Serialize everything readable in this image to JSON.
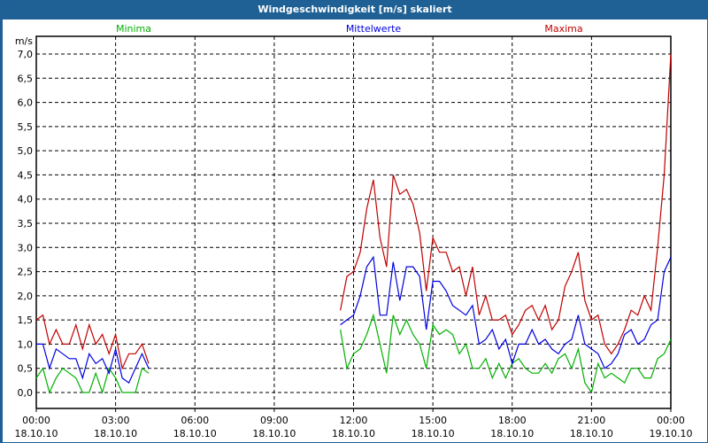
{
  "window": {
    "title": "Windgeschwindigkeit [m/s] skaliert"
  },
  "chart_data": {
    "type": "line",
    "title": "Windgeschwindigkeit [m/s] skaliert",
    "ylabel": "m/s",
    "xlabel": "",
    "ylim": [
      0,
      7
    ],
    "xlim_hours": [
      0,
      24
    ],
    "grid": true,
    "y_ticks": [
      "0,0",
      "0,5",
      "1,0",
      "1,5",
      "2,0",
      "2,5",
      "3,0",
      "3,5",
      "4,0",
      "4,5",
      "5,0",
      "5,5",
      "6,0",
      "6,5",
      "7,0"
    ],
    "x_ticks": [
      {
        "time": "00:00",
        "date": "18.10.10"
      },
      {
        "time": "03:00",
        "date": "18.10.10"
      },
      {
        "time": "06:00",
        "date": "18.10.10"
      },
      {
        "time": "09:00",
        "date": "18.10.10"
      },
      {
        "time": "12:00",
        "date": "18.10.10"
      },
      {
        "time": "15:00",
        "date": "18.10.10"
      },
      {
        "time": "18:00",
        "date": "18.10.10"
      },
      {
        "time": "21:00",
        "date": "18.10.10"
      },
      {
        "time": "00:00",
        "date": "19.10.10"
      }
    ],
    "legend_position": "top",
    "series": [
      {
        "name": "Minima",
        "color": "#00b000",
        "segments": [
          {
            "start_hour": 0,
            "step_hours": 0.25,
            "values": [
              0.3,
              0.5,
              0.0,
              0.3,
              0.5,
              0.4,
              0.3,
              0.0,
              0.0,
              0.4,
              0.0,
              0.5,
              0.3,
              0.0,
              0.0,
              0.0,
              0.5,
              0.4
            ]
          },
          {
            "start_hour": 11.5,
            "step_hours": 0.25,
            "values": [
              1.3,
              0.5,
              0.8,
              0.9,
              1.2,
              1.6,
              1.0,
              0.4,
              1.6,
              1.2,
              1.5,
              1.2,
              1.0,
              0.5,
              1.4,
              1.2,
              1.3,
              1.2,
              0.8,
              1.0,
              0.5,
              0.5,
              0.7,
              0.3,
              0.6,
              0.3,
              0.6,
              0.7,
              0.5,
              0.4,
              0.4,
              0.6,
              0.4,
              0.7,
              0.8,
              0.5,
              0.9,
              0.2,
              0.0,
              0.6,
              0.3,
              0.4,
              0.3,
              0.2,
              0.5,
              0.5,
              0.3,
              0.3,
              0.7,
              0.8,
              1.1
            ]
          }
        ]
      },
      {
        "name": "Mittelwerte",
        "color": "#0000e0",
        "segments": [
          {
            "start_hour": 0,
            "step_hours": 0.25,
            "values": [
              1.0,
              1.0,
              0.5,
              0.9,
              0.8,
              0.7,
              0.7,
              0.3,
              0.8,
              0.6,
              0.7,
              0.4,
              0.9,
              0.3,
              0.2,
              0.5,
              0.8,
              0.5
            ]
          },
          {
            "start_hour": 11.5,
            "step_hours": 0.25,
            "values": [
              1.4,
              1.5,
              1.6,
              2.0,
              2.6,
              2.8,
              1.6,
              1.6,
              2.7,
              1.9,
              2.6,
              2.6,
              2.4,
              1.3,
              2.3,
              2.3,
              2.1,
              1.8,
              1.7,
              1.6,
              1.8,
              1.0,
              1.1,
              1.3,
              0.9,
              1.1,
              0.6,
              1.0,
              1.0,
              1.3,
              1.0,
              1.1,
              0.9,
              0.8,
              1.0,
              1.1,
              1.6,
              1.0,
              0.9,
              0.8,
              0.5,
              0.6,
              0.8,
              1.2,
              1.3,
              1.0,
              1.1,
              1.4,
              1.5,
              2.5,
              2.8
            ]
          }
        ]
      },
      {
        "name": "Maxima",
        "color": "#c00000",
        "segments": [
          {
            "start_hour": 0,
            "step_hours": 0.25,
            "values": [
              1.5,
              1.6,
              1.0,
              1.3,
              1.0,
              1.0,
              1.4,
              0.9,
              1.4,
              1.0,
              1.2,
              0.8,
              1.2,
              0.5,
              0.8,
              0.8,
              1.0,
              0.6
            ]
          },
          {
            "start_hour": 11.5,
            "step_hours": 0.25,
            "values": [
              1.7,
              2.4,
              2.5,
              2.9,
              3.8,
              4.4,
              3.2,
              2.6,
              4.5,
              4.1,
              4.2,
              3.9,
              3.3,
              2.1,
              3.2,
              2.9,
              2.9,
              2.5,
              2.6,
              2.0,
              2.6,
              1.6,
              2.0,
              1.5,
              1.5,
              1.6,
              1.2,
              1.4,
              1.7,
              1.8,
              1.5,
              1.8,
              1.3,
              1.5,
              2.2,
              2.5,
              2.9,
              1.9,
              1.5,
              1.6,
              1.0,
              0.8,
              1.0,
              1.3,
              1.7,
              1.6,
              2.0,
              1.7,
              3.0,
              4.5,
              7.0
            ]
          }
        ]
      }
    ]
  }
}
